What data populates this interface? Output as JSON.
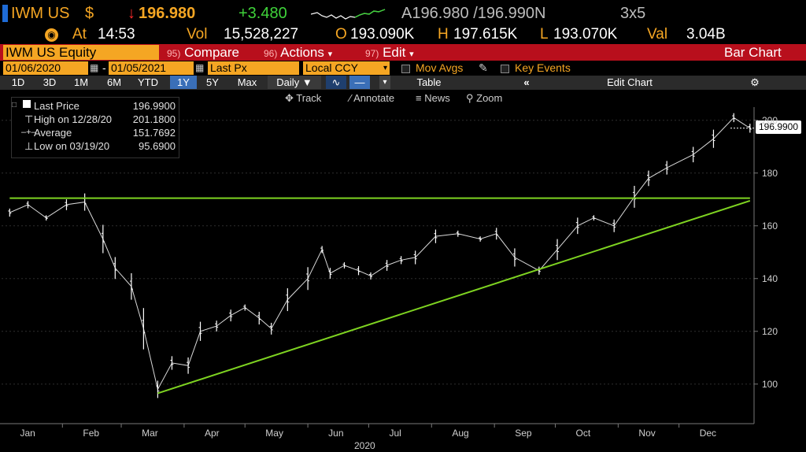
{
  "quote": {
    "ticker": "IWM US",
    "currency_symbol": "$",
    "last": "196.980",
    "change": "+3.480",
    "bid_ask": "A196.980 /196.990N",
    "size": "3x5",
    "time_label": "At",
    "time": "14:53",
    "vol_label": "Vol",
    "vol": "15,528,227",
    "open_label": "O",
    "open": "193.090K",
    "high_label": "H",
    "high": "197.615K",
    "low_label": "L",
    "low": "193.070K",
    "val_label": "Val",
    "val": "3.04B"
  },
  "command_bar": {
    "security": "IWM US Equity",
    "compare_num": "95)",
    "compare": "Compare",
    "actions_num": "96)",
    "actions": "Actions",
    "edit_num": "97)",
    "edit": "Edit",
    "title": "Bar Chart"
  },
  "range": {
    "start": "01/06/2020",
    "sep": "-",
    "end": "01/05/2021",
    "field": "Last Px",
    "currency": "Local CCY",
    "mov_avgs": "Mov Avgs",
    "key_events": "Key Events"
  },
  "periods": [
    "1D",
    "3D",
    "1M",
    "6M",
    "YTD",
    "1Y",
    "5Y",
    "Max"
  ],
  "selected_period": "1Y",
  "frequency": "Daily",
  "table_label": "Table",
  "edit_chart": "Edit Chart",
  "chart_tools": [
    "Track",
    "Annotate",
    "News",
    "Zoom"
  ],
  "legend": {
    "last_label": "Last Price",
    "last_value": "196.9900",
    "high_label": "High on 12/28/20",
    "high_value": "201.1800",
    "avg_label": "Average",
    "avg_value": "151.7692",
    "low_label": "Low on 03/19/20",
    "low_value": "95.6900"
  },
  "last_price_tag": "196.9900",
  "colors": {
    "amber": "#f5a623",
    "green": "#3fd23a",
    "red": "#ff2b2b",
    "bar_red": "#b80f1c",
    "trendline": "#7ed321"
  },
  "chart_data": {
    "type": "line",
    "style": "ohlc-bars",
    "ylim": [
      85,
      205
    ],
    "yticks": [
      100,
      120,
      140,
      160,
      180,
      200
    ],
    "xticks": [
      "Jan",
      "Feb",
      "Mar",
      "Apr",
      "May",
      "Jun",
      "Jul",
      "Aug",
      "Sep",
      "Oct",
      "Nov",
      "Dec"
    ],
    "xlabel": "2020",
    "series": [
      {
        "x": [
          "2020-01-06",
          "2020-01-15",
          "2020-01-24",
          "2020-02-03",
          "2020-02-12",
          "2020-02-21",
          "2020-02-27",
          "2020-03-06",
          "2020-03-12",
          "2020-03-19",
          "2020-03-26",
          "2020-04-03",
          "2020-04-09",
          "2020-04-17",
          "2020-04-24",
          "2020-05-01",
          "2020-05-08",
          "2020-05-14",
          "2020-05-22",
          "2020-06-01",
          "2020-06-08",
          "2020-06-12",
          "2020-06-19",
          "2020-06-26",
          "2020-07-02",
          "2020-07-10",
          "2020-07-17",
          "2020-07-24",
          "2020-08-03",
          "2020-08-14",
          "2020-08-25",
          "2020-09-02",
          "2020-09-11",
          "2020-09-23",
          "2020-10-02",
          "2020-10-12",
          "2020-10-20",
          "2020-10-30",
          "2020-11-09",
          "2020-11-16",
          "2020-11-25",
          "2020-12-08",
          "2020-12-18",
          "2020-12-28",
          "2021-01-05"
        ],
        "values": [
          165,
          168,
          163,
          168,
          169,
          155,
          144,
          137,
          121,
          98,
          108,
          107,
          120,
          122,
          126,
          129,
          125,
          121,
          132,
          140,
          151,
          142,
          145,
          143,
          141,
          145,
          147,
          148,
          156,
          157,
          155,
          157,
          148,
          143,
          151,
          160,
          163,
          160,
          171,
          178,
          182,
          187,
          193,
          201,
          197
        ]
      }
    ],
    "trendlines": [
      {
        "x": [
          "2020-01-06",
          "2021-01-05"
        ],
        "values": [
          170.5,
          170.5
        ]
      },
      {
        "x": [
          "2020-03-19",
          "2021-01-05"
        ],
        "values": [
          96.5,
          169.5
        ]
      }
    ]
  }
}
